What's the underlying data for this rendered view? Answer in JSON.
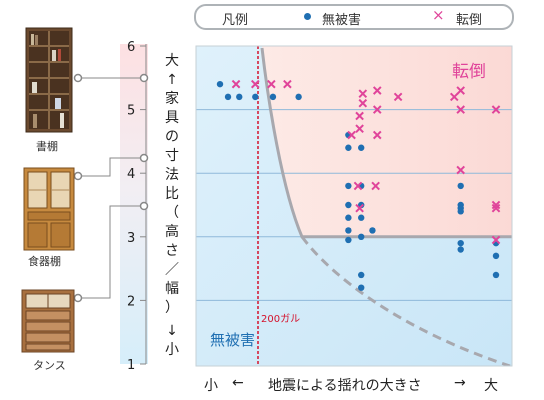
{
  "legend": {
    "title": "凡例",
    "no_damage": "無被害",
    "toppled": "転倒",
    "no_damage_color": "#1f6fb2",
    "toppled_color": "#e0449a"
  },
  "furniture": {
    "bookshelf": "書棚",
    "cupboard": "食器棚",
    "drawers": "タンス"
  },
  "axis_titles": {
    "y_top": "大",
    "y_up_arrow": "↑",
    "y_text": [
      "家",
      "具",
      "の",
      "寸",
      "法",
      "比",
      "（",
      "高",
      "さ",
      "／",
      "幅",
      "）"
    ],
    "y_down_arrow": "↓",
    "y_bottom": "小",
    "x_left": "小",
    "x_left_arrow": "←",
    "x_text": "地震による揺れの大きさ",
    "x_right_arrow": "→",
    "x_right": "大"
  },
  "regions": {
    "toppled": "転倒",
    "no_damage": "無被害"
  },
  "chart_data": {
    "type": "scatter",
    "y_ticks": [
      "1",
      "2",
      "3",
      "4",
      "5",
      "6"
    ],
    "ylim": [
      1,
      6
    ],
    "threshold_label": "200ガル",
    "series": [
      {
        "name": "無被害",
        "marker": "dot",
        "points": [
          [
            0.0,
            5.4
          ],
          [
            0.5,
            5.2
          ],
          [
            1.2,
            5.2
          ],
          [
            2.2,
            5.2
          ],
          [
            3.3,
            5.2
          ],
          [
            4.9,
            5.2
          ],
          [
            8.0,
            4.6
          ],
          [
            8.0,
            4.4
          ],
          [
            8.0,
            3.8
          ],
          [
            8.0,
            3.5
          ],
          [
            8.0,
            3.3
          ],
          [
            8.0,
            3.1
          ],
          [
            8.0,
            2.95
          ],
          [
            8.8,
            4.4
          ],
          [
            8.8,
            3.8
          ],
          [
            8.8,
            3.5
          ],
          [
            8.8,
            3.3
          ],
          [
            8.8,
            3.0
          ],
          [
            8.8,
            2.4
          ],
          [
            8.8,
            2.2
          ],
          [
            9.5,
            3.1
          ],
          [
            15.0,
            3.8
          ],
          [
            15.0,
            3.5
          ],
          [
            15.0,
            3.45
          ],
          [
            15.0,
            3.4
          ],
          [
            15.0,
            2.9
          ],
          [
            15.0,
            2.8
          ],
          [
            17.2,
            2.9
          ],
          [
            17.2,
            2.7
          ],
          [
            17.2,
            2.4
          ]
        ]
      },
      {
        "name": "転倒",
        "marker": "cross",
        "points": [
          [
            1.0,
            5.4
          ],
          [
            2.2,
            5.4
          ],
          [
            3.2,
            5.4
          ],
          [
            4.2,
            5.4
          ],
          [
            8.9,
            5.25
          ],
          [
            8.9,
            5.1
          ],
          [
            8.2,
            4.6
          ],
          [
            8.7,
            4.9
          ],
          [
            8.7,
            4.7
          ],
          [
            9.8,
            5.3
          ],
          [
            9.8,
            5.0
          ],
          [
            9.8,
            4.6
          ],
          [
            11.1,
            5.2
          ],
          [
            8.6,
            3.8
          ],
          [
            9.7,
            3.8
          ],
          [
            8.7,
            3.45
          ],
          [
            14.6,
            5.2
          ],
          [
            15.0,
            5.3
          ],
          [
            15.0,
            5.0
          ],
          [
            15.0,
            4.05
          ],
          [
            17.2,
            5.0
          ],
          [
            17.2,
            3.5
          ],
          [
            17.2,
            3.45
          ],
          [
            17.2,
            2.95
          ]
        ]
      }
    ]
  }
}
